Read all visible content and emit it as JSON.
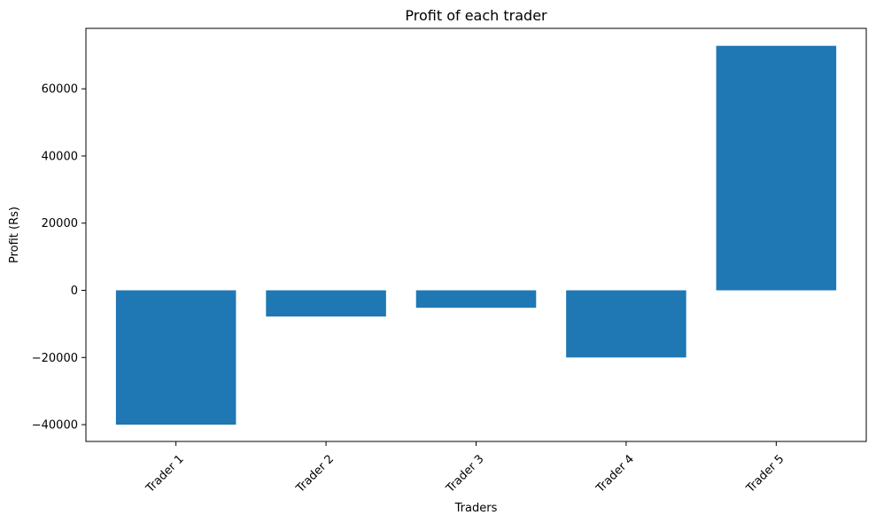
{
  "chart_data": {
    "type": "bar",
    "title": "Profit of each trader",
    "xlabel": "Traders",
    "ylabel": "Profit (Rs)",
    "categories": [
      "Trader 1",
      "Trader 2",
      "Trader 3",
      "Trader 4",
      "Trader 5"
    ],
    "values": [
      -40000,
      -7800,
      -5200,
      -20000,
      72800
    ],
    "ylim": [
      -45000,
      78000
    ],
    "yticks": [
      -40000,
      -20000,
      0,
      20000,
      40000,
      60000
    ],
    "ytick_labels": [
      "−40000",
      "−20000",
      "0",
      "20000",
      "40000",
      "60000"
    ],
    "bar_color": "#1f77b4",
    "grid": false
  }
}
